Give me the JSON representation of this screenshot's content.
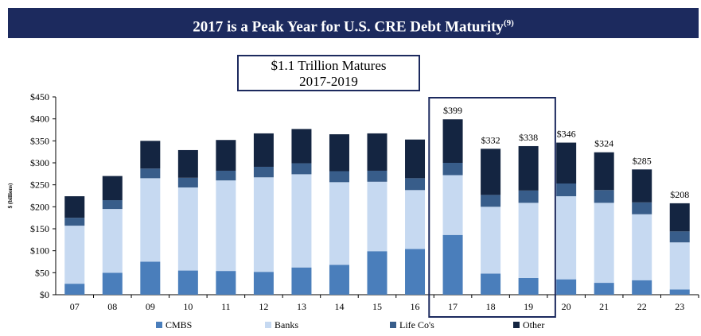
{
  "header": {
    "title": "2017 is a Peak Year for U.S. CRE Debt Maturity",
    "footnote": "(9)"
  },
  "callout": {
    "line1": "$1.1 Trillion Matures",
    "line2": "2017-2019"
  },
  "chart_data": {
    "type": "bar",
    "stacked": true,
    "categories": [
      "07",
      "08",
      "09",
      "10",
      "11",
      "12",
      "13",
      "14",
      "15",
      "16",
      "17",
      "18",
      "19",
      "20",
      "21",
      "22",
      "23"
    ],
    "series": [
      {
        "name": "CMBS",
        "color": "#4a7ebb",
        "values": [
          25,
          50,
          75,
          55,
          54,
          52,
          62,
          68,
          99,
          104,
          136,
          48,
          38,
          35,
          27,
          33,
          12
        ]
      },
      {
        "name": "Banks",
        "color": "#c6d9f1",
        "values": [
          132,
          145,
          190,
          189,
          206,
          215,
          212,
          188,
          158,
          134,
          136,
          152,
          171,
          189,
          182,
          150,
          107
        ]
      },
      {
        "name": "Life Co's",
        "color": "#385d8a",
        "values": [
          18,
          20,
          22,
          22,
          22,
          24,
          25,
          25,
          25,
          27,
          28,
          27,
          28,
          29,
          29,
          27,
          25
        ]
      },
      {
        "name": "Other",
        "color": "#142541",
        "values": [
          49,
          55,
          63,
          63,
          70,
          76,
          78,
          84,
          85,
          88,
          99,
          105,
          101,
          93,
          86,
          75,
          64
        ]
      }
    ],
    "totals_labels": {
      "17": "$399",
      "18": "$332",
      "19": "$338",
      "20": "$346",
      "21": "$324",
      "22": "$285",
      "23": "$208"
    },
    "yticks": [
      "$0",
      "$50",
      "$100",
      "$150",
      "$200",
      "$250",
      "$300",
      "$350",
      "$400",
      "$450"
    ],
    "ylabel": "$ (billions)",
    "ylim": [
      0,
      450
    ],
    "grid": false,
    "legend_position": "bottom",
    "highlight": [
      "17",
      "19"
    ]
  }
}
